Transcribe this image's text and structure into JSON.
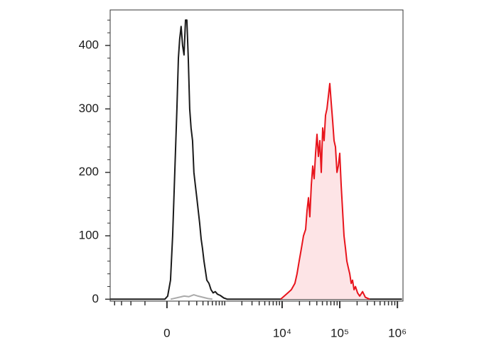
{
  "chart_data": {
    "type": "line",
    "x_scale": "biexponential",
    "xlim": [
      -960,
      1250000
    ],
    "xticks": [
      {
        "value": 0,
        "label": "0"
      },
      {
        "value": 10000,
        "label": "10⁴"
      },
      {
        "value": 100000,
        "label": "10⁵"
      },
      {
        "value": 1000000,
        "label": "10⁶"
      }
    ],
    "xminorticks": [
      -800,
      -600,
      -400,
      -200,
      100,
      200,
      300,
      400,
      500,
      600,
      700,
      800,
      900,
      1000,
      2000,
      3000,
      4000,
      5000,
      6000,
      7000,
      8000,
      9000,
      20000,
      30000,
      40000,
      50000,
      60000,
      70000,
      80000,
      90000,
      200000,
      300000,
      400000,
      500000,
      600000,
      700000,
      800000,
      900000
    ],
    "ylim": [
      -3,
      456
    ],
    "yticks": [
      0,
      100,
      200,
      300,
      400
    ],
    "yminorticks": [
      20,
      40,
      60,
      80,
      120,
      140,
      160,
      180,
      220,
      240,
      260,
      280,
      320,
      340,
      360,
      380,
      420,
      440
    ],
    "series": [
      {
        "color": "#aaaaaa",
        "x": [
          30,
          100,
          150,
          200,
          260,
          320,
          400,
          500,
          600
        ],
        "values": [
          0,
          3,
          5,
          4,
          7,
          5,
          3,
          1,
          0
        ]
      },
      {
        "color": "#1a1a1a",
        "x": [
          -950,
          -17,
          6,
          29,
          46,
          64,
          82,
          95,
          107,
          120,
          134,
          148,
          163,
          177,
          193,
          209,
          225,
          243,
          261,
          280,
          301,
          322,
          344,
          368,
          392,
          418,
          445,
          474,
          519,
          567,
          621,
          679,
          742,
          834,
          961,
          1110,
          1200000
        ],
        "values": [
          0,
          0,
          5,
          30,
          100,
          200,
          300,
          380,
          410,
          430,
          400,
          385,
          440,
          440,
          380,
          300,
          270,
          250,
          200,
          180,
          160,
          140,
          120,
          95,
          80,
          60,
          45,
          30,
          25,
          15,
          10,
          12,
          8,
          6,
          2,
          0,
          0
        ]
      },
      {
        "color": "#e8141c",
        "fill": "#fde4e6",
        "x": [
          9450,
          10890,
          12560,
          14460,
          16670,
          18160,
          19780,
          21550,
          23460,
          25550,
          27040,
          28640,
          30270,
          32060,
          33960,
          35970,
          38020,
          40270,
          42660,
          45080,
          47750,
          50580,
          53460,
          56620,
          59980,
          63390,
          67140,
          71120,
          75340,
          79620,
          84330,
          89330,
          94410,
          100000,
          105900,
          111900,
          118600,
          125600,
          132700,
          140600,
          148900,
          157800,
          166700,
          176600,
          187100,
          203700,
          221800,
          248300,
          278000,
          330400
        ],
        "values": [
          0,
          5,
          10,
          15,
          25,
          40,
          60,
          80,
          100,
          110,
          140,
          160,
          130,
          180,
          210,
          190,
          230,
          260,
          225,
          250,
          200,
          270,
          250,
          290,
          300,
          320,
          340,
          310,
          280,
          250,
          240,
          200,
          210,
          230,
          180,
          140,
          100,
          80,
          60,
          50,
          40,
          25,
          30,
          15,
          20,
          10,
          5,
          12,
          3,
          0
        ]
      }
    ]
  }
}
